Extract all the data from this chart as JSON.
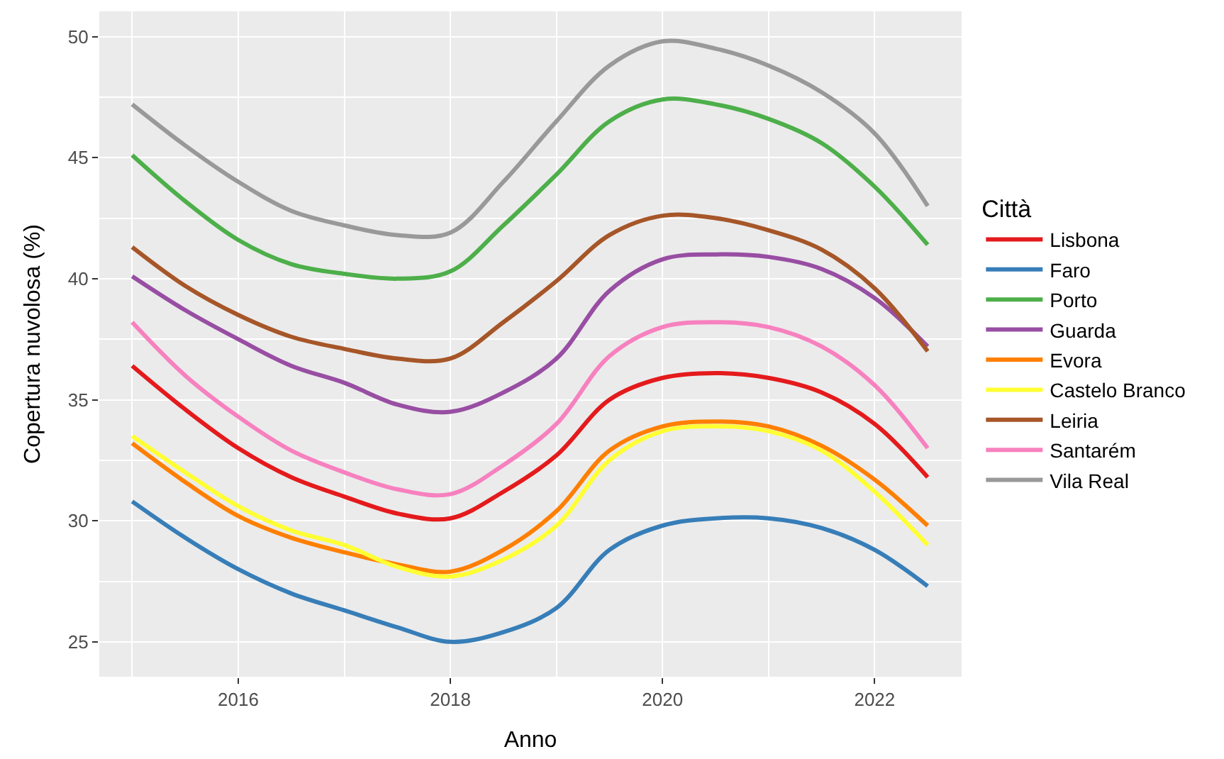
{
  "chart_data": {
    "type": "line",
    "xlabel": "Anno",
    "ylabel": "Copertura nuvolosa (%)",
    "legend_title": "Città",
    "legend": "right",
    "grid": true,
    "x": [
      2015,
      2015.5,
      2016,
      2016.5,
      2017,
      2017.5,
      2018,
      2018.5,
      2019,
      2019.5,
      2020,
      2020.5,
      2021,
      2021.5,
      2022,
      2022.5
    ],
    "xlim": [
      2014.69,
      2022.82
    ],
    "xticks": [
      2016,
      2018,
      2020,
      2022
    ],
    "ylim": [
      23.56,
      51.04
    ],
    "yticks": [
      25,
      30,
      35,
      40,
      45,
      50
    ],
    "series": [
      {
        "name": "Lisbona",
        "color": "#e41a1c",
        "values": [
          36.4,
          34.6,
          33.0,
          31.8,
          31.0,
          30.3,
          30.1,
          31.2,
          32.7,
          35.0,
          35.9,
          36.1,
          35.9,
          35.3,
          34.0,
          31.8
        ]
      },
      {
        "name": "Faro",
        "color": "#377eb8",
        "values": [
          30.8,
          29.3,
          28.0,
          27.0,
          26.3,
          25.6,
          25.0,
          25.4,
          26.4,
          28.8,
          29.8,
          30.1,
          30.1,
          29.7,
          28.8,
          27.3
        ]
      },
      {
        "name": "Porto",
        "color": "#4daf4a",
        "values": [
          45.1,
          43.2,
          41.6,
          40.6,
          40.2,
          40.0,
          40.3,
          42.2,
          44.3,
          46.5,
          47.4,
          47.2,
          46.6,
          45.6,
          43.8,
          41.4
        ]
      },
      {
        "name": "Guarda",
        "color": "#984ea3",
        "values": [
          40.1,
          38.7,
          37.5,
          36.4,
          35.7,
          34.8,
          34.5,
          35.3,
          36.7,
          39.5,
          40.8,
          41.0,
          40.9,
          40.4,
          39.2,
          37.2
        ]
      },
      {
        "name": "Evora",
        "color": "#ff7f00",
        "values": [
          33.2,
          31.6,
          30.2,
          29.3,
          28.7,
          28.2,
          27.9,
          28.8,
          30.4,
          32.9,
          33.9,
          34.1,
          33.9,
          33.1,
          31.7,
          29.8
        ]
      },
      {
        "name": "Castelo Branco",
        "color": "#ffff33",
        "values": [
          33.5,
          32.0,
          30.6,
          29.6,
          29.0,
          28.1,
          27.7,
          28.4,
          29.8,
          32.5,
          33.7,
          33.9,
          33.7,
          32.9,
          31.2,
          29.0
        ]
      },
      {
        "name": "Leiria",
        "color": "#a65628",
        "values": [
          41.3,
          39.7,
          38.5,
          37.6,
          37.1,
          36.7,
          36.7,
          38.2,
          39.9,
          41.8,
          42.6,
          42.5,
          42.0,
          41.2,
          39.6,
          37.0
        ]
      },
      {
        "name": "Santarém",
        "color": "#f781bf",
        "values": [
          38.2,
          36.0,
          34.3,
          32.9,
          32.0,
          31.3,
          31.1,
          32.3,
          34.0,
          36.8,
          38.0,
          38.2,
          38.0,
          37.2,
          35.6,
          33.0
        ]
      },
      {
        "name": "Vila Real",
        "color": "#999999",
        "values": [
          47.2,
          45.5,
          44.0,
          42.8,
          42.2,
          41.8,
          41.9,
          44.0,
          46.5,
          48.8,
          49.8,
          49.5,
          48.8,
          47.7,
          46.0,
          43.0
        ]
      }
    ]
  }
}
